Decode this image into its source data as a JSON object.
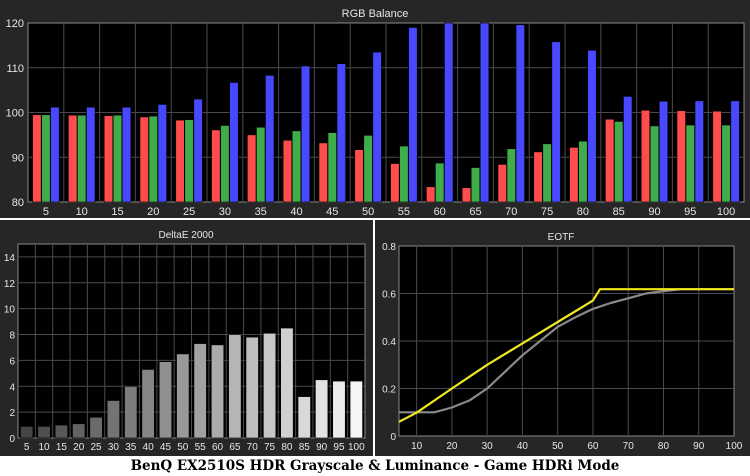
{
  "caption": "BenQ EX2510S HDR Grayscale & Luminance - Game HDRi Mode",
  "colors": {
    "panel_bg": "#262626",
    "plot_bg": "#000000",
    "grid": "#4a4a4a",
    "red": "#ff4d4d",
    "green": "#3fae4a",
    "blue": "#4848ff",
    "eotf_target": "#f0e81e",
    "eotf_measured": "#8a8a8a"
  },
  "chart_data": [
    {
      "type": "bar",
      "title": "RGB Balance",
      "categories": [
        "5",
        "10",
        "15",
        "20",
        "25",
        "30",
        "35",
        "40",
        "45",
        "50",
        "55",
        "60",
        "65",
        "70",
        "75",
        "80",
        "85",
        "90",
        "95",
        "100"
      ],
      "ylim": [
        80,
        120
      ],
      "yticks": [
        "80",
        "90",
        "100",
        "110",
        "120"
      ],
      "series": [
        {
          "name": "",
          "color": "red",
          "values": [
            99.5,
            99.4,
            99.3,
            99.0,
            98.3,
            96.1,
            95.0,
            93.8,
            93.2,
            91.7,
            88.6,
            83.4,
            83.2,
            88.4,
            91.2,
            92.2,
            98.5,
            100.5,
            100.4,
            100.3
          ]
        },
        {
          "name": "",
          "color": "green",
          "values": [
            99.5,
            99.4,
            99.4,
            99.2,
            98.4,
            97.1,
            96.7,
            95.9,
            95.5,
            94.9,
            92.5,
            88.7,
            87.7,
            91.9,
            93.0,
            93.6,
            98.0,
            97.0,
            97.2,
            97.2
          ]
        },
        {
          "name": "",
          "color": "blue",
          "values": [
            101.2,
            101.2,
            101.2,
            101.8,
            103.0,
            106.7,
            108.3,
            110.4,
            110.9,
            113.5,
            119.0,
            120.0,
            120.0,
            119.6,
            115.8,
            113.9,
            103.6,
            102.5,
            102.6,
            102.6
          ]
        }
      ]
    },
    {
      "type": "bar",
      "title": "DeltaE 2000",
      "categories": [
        "5",
        "10",
        "15",
        "20",
        "25",
        "30",
        "35",
        "40",
        "45",
        "50",
        "55",
        "60",
        "65",
        "70",
        "75",
        "80",
        "85",
        "90",
        "95",
        "100"
      ],
      "values": [
        0.9,
        0.9,
        1.0,
        1.1,
        1.6,
        2.9,
        4.0,
        5.3,
        5.9,
        6.5,
        7.3,
        7.2,
        8.0,
        7.8,
        8.1,
        8.5,
        3.2,
        4.5,
        4.4,
        4.4
      ],
      "ylim": [
        0,
        15
      ],
      "yticks": [
        "0",
        "2",
        "4",
        "6",
        "8",
        "10",
        "12",
        "14"
      ]
    },
    {
      "type": "line",
      "title": "EOTF",
      "xlim": [
        5,
        100
      ],
      "ylim": [
        0,
        0.8
      ],
      "xticks": [
        "10",
        "20",
        "30",
        "40",
        "50",
        "60",
        "70",
        "80",
        "90",
        "100"
      ],
      "yticks": [
        "0",
        "0.2",
        "0.4",
        "0.6",
        "0.8"
      ],
      "series": [
        {
          "name": "",
          "color": "eotf_target",
          "x": [
            5,
            10,
            20,
            30,
            40,
            50,
            60,
            62,
            70,
            80,
            90,
            100
          ],
          "y": [
            0.06,
            0.098,
            0.2,
            0.3,
            0.39,
            0.48,
            0.57,
            0.618,
            0.618,
            0.618,
            0.618,
            0.618
          ]
        },
        {
          "name": "",
          "color": "eotf_measured",
          "x": [
            5,
            10,
            15,
            20,
            25,
            30,
            35,
            40,
            45,
            50,
            55,
            60,
            65,
            70,
            75,
            80,
            85,
            90,
            95,
            100
          ],
          "y": [
            0.1,
            0.1,
            0.1,
            0.12,
            0.15,
            0.2,
            0.27,
            0.34,
            0.4,
            0.46,
            0.5,
            0.535,
            0.56,
            0.58,
            0.6,
            0.61,
            0.618,
            0.618,
            0.618,
            0.618
          ]
        }
      ]
    }
  ]
}
